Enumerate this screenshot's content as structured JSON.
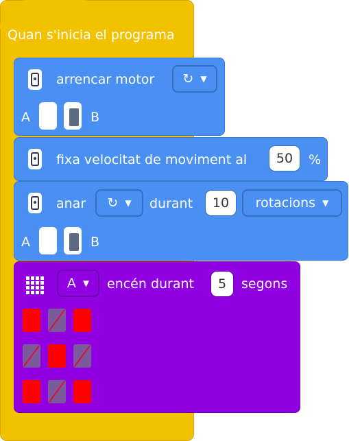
{
  "hat": {
    "label": "Quan s'inicia el programa"
  },
  "blocks": [
    {
      "label": "arrencar motor",
      "direction_icon": "clockwise-icon",
      "ports": {
        "a_label": "A",
        "b_label": "B",
        "selected": "B"
      }
    },
    {
      "label": "fixa velocitat de moviment al",
      "value": "50",
      "unit": "%"
    },
    {
      "label": "anar",
      "direction_icon": "clockwise-icon",
      "during_label": "durant",
      "value": "10",
      "unit_option": "rotacions",
      "ports": {
        "a_label": "A",
        "b_label": "B",
        "selected": "B"
      }
    },
    {
      "matrix_icon": "grid-icon",
      "port_option": "A",
      "label": "encén durant",
      "value": "5",
      "unit": "segons",
      "pixels": [
        [
          1,
          0,
          1
        ],
        [
          0,
          1,
          0
        ],
        [
          1,
          0,
          1
        ]
      ]
    }
  ],
  "colors": {
    "hat": "#f2c100",
    "motor": "#4a90f2",
    "light_matrix": "#9100e0",
    "pixel_on": "#ff0000",
    "pixel_off": "#7a5a9a"
  }
}
